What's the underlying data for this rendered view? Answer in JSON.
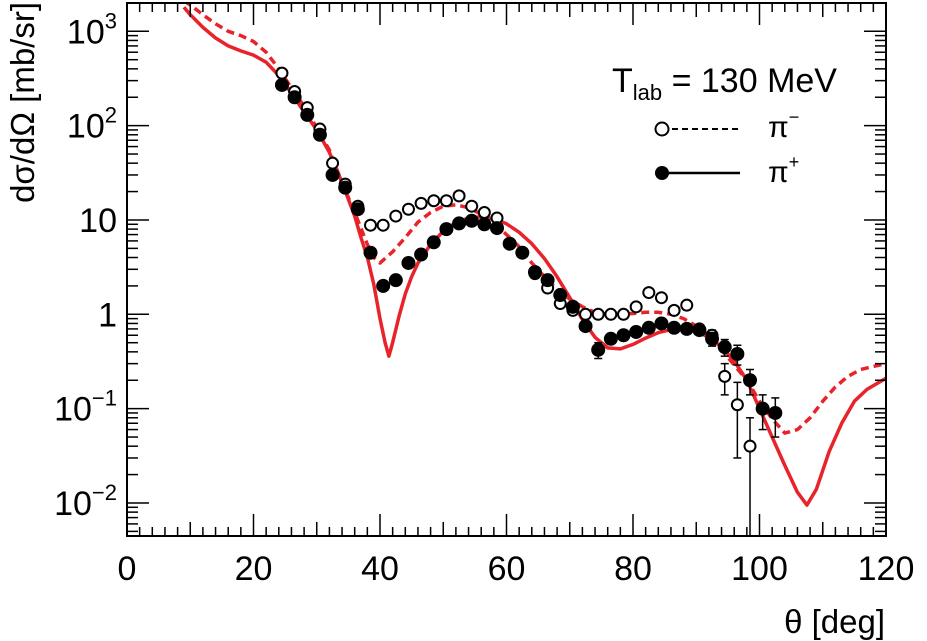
{
  "chart_data": {
    "type": "scatter",
    "title": "",
    "xlabel": "θ [deg]",
    "ylabel": "dσ/dΩ [mb/sr]",
    "xlim": [
      0,
      120
    ],
    "ylim_log10": [
      -2.35,
      3.3
    ],
    "y_scale": "log",
    "grid": false,
    "x_ticks": [
      0,
      20,
      40,
      60,
      80,
      100,
      120
    ],
    "x_tick_labels": [
      "0",
      "20",
      "40",
      "60",
      "80",
      "100",
      "120"
    ],
    "y_ticks": [
      {
        "value": 0.01,
        "base": "10",
        "exp": "−2",
        "plain": ""
      },
      {
        "value": 0.1,
        "base": "10",
        "exp": "−1",
        "plain": ""
      },
      {
        "value": 1,
        "base": "",
        "exp": "",
        "plain": "1"
      },
      {
        "value": 10,
        "base": "",
        "exp": "",
        "plain": "10"
      },
      {
        "value": 100,
        "base": "10",
        "exp": "2",
        "plain": ""
      },
      {
        "value": 1000,
        "base": "10",
        "exp": "3",
        "plain": ""
      }
    ],
    "legend": {
      "placement": "top-right",
      "header_main": "T",
      "header_sub": "lab",
      "header_rest": " = 130 MeV",
      "entries": [
        {
          "label_base": "π",
          "label_sup": "−",
          "marker": "open-circle",
          "line": "dashed"
        },
        {
          "label_base": "π",
          "label_sup": "+",
          "marker": "filled-circle",
          "line": "solid"
        }
      ]
    },
    "colors": {
      "data": "#000000",
      "theory": "#e8232a"
    },
    "series": [
      {
        "name": "π− data",
        "marker": "open-circle",
        "x": [
          24.5,
          26.5,
          28.5,
          30.5,
          32.5,
          34.5,
          36.5,
          38.5,
          40.5,
          42.5,
          44.5,
          46.5,
          48.5,
          50.5,
          52.5,
          54.5,
          56.5,
          58.5,
          64.5,
          66.5,
          68.5,
          70.5,
          72.5,
          74.5,
          76.5,
          78.5,
          80.5,
          82.5,
          84.5,
          86.5,
          88.5,
          90.5,
          92.5,
          94.5,
          96.5,
          98.5
        ],
        "y": [
          360,
          230,
          155,
          92,
          40,
          24,
          14,
          8.8,
          8.8,
          11,
          13,
          15,
          16,
          16,
          18,
          14,
          12,
          10.5,
          2.7,
          1.9,
          1.3,
          1.1,
          1.0,
          1.0,
          1.0,
          1.0,
          1.2,
          1.7,
          1.5,
          1.1,
          1.25,
          0.7,
          0.6,
          0.22,
          0.11,
          0.04
        ],
        "err": [
          0,
          0,
          0,
          0,
          0,
          0,
          0,
          0,
          0,
          0,
          0,
          0,
          0,
          0,
          0,
          0,
          0,
          0,
          0,
          0,
          0,
          0,
          0,
          0,
          0,
          0,
          0,
          0,
          0,
          0,
          0,
          0.08,
          0.08,
          0.08,
          0.08,
          0.04
        ]
      },
      {
        "name": "π+ data",
        "marker": "filled-circle",
        "x": [
          24.5,
          26.5,
          28.5,
          30.5,
          32.5,
          34.5,
          36.5,
          38.5,
          40.5,
          42.5,
          44.5,
          46.5,
          48.5,
          50.5,
          52.5,
          54.5,
          56.5,
          58.5,
          60.5,
          62.5,
          64.5,
          66.5,
          68.5,
          70.5,
          72.5,
          74.5,
          76.5,
          78.5,
          80.5,
          82.5,
          84.5,
          86.5,
          88.5,
          90.5,
          92.5,
          94.5,
          96.5,
          98.5,
          100.5,
          102.5
        ],
        "y": [
          270,
          200,
          130,
          80,
          30,
          22,
          13,
          4.5,
          2.0,
          2.3,
          3.5,
          4.3,
          5.8,
          8.0,
          9.2,
          9.8,
          9.0,
          8.2,
          5.6,
          4.5,
          2.8,
          2.3,
          1.6,
          1.2,
          0.75,
          0.42,
          0.55,
          0.6,
          0.65,
          0.72,
          0.8,
          0.72,
          0.7,
          0.68,
          0.55,
          0.45,
          0.38,
          0.2,
          0.1,
          0.09
        ],
        "err": [
          0,
          0,
          0,
          0,
          0,
          0,
          0,
          0,
          0,
          0,
          0,
          0,
          0,
          0,
          0,
          0,
          0,
          0,
          0,
          0,
          0,
          0,
          0,
          0,
          0,
          0.08,
          0,
          0,
          0,
          0,
          0,
          0,
          0,
          0.06,
          0.09,
          0.09,
          0.09,
          0.06,
          0.04,
          0.04
        ]
      },
      {
        "name": "π− theory",
        "line": "dashed",
        "x": [
          9,
          10,
          12,
          14,
          16,
          18,
          20,
          22,
          24,
          26,
          28,
          30,
          32,
          34,
          36,
          38,
          39,
          40,
          42,
          44,
          46,
          48,
          50,
          52,
          54,
          56,
          58,
          60,
          62,
          64,
          66,
          68,
          70,
          72,
          74,
          76,
          78,
          80,
          82,
          84,
          86,
          88,
          90,
          92,
          94,
          96,
          98,
          100,
          102,
          104,
          106,
          108,
          110,
          112,
          114,
          116,
          118,
          120
        ],
        "y": [
          2100,
          1900,
          1500,
          1200,
          1000,
          900,
          780,
          600,
          400,
          250,
          160,
          95,
          55,
          25,
          12,
          5.5,
          4.0,
          3.5,
          4.6,
          6.5,
          9.5,
          12,
          14,
          14.5,
          13.5,
          11.5,
          9.3,
          7.0,
          5.2,
          3.5,
          2.5,
          1.85,
          1.45,
          1.2,
          1.05,
          1.0,
          1.0,
          1.02,
          1.05,
          1.05,
          1.0,
          0.9,
          0.75,
          0.58,
          0.42,
          0.29,
          0.2,
          0.12,
          0.078,
          0.055,
          0.06,
          0.08,
          0.12,
          0.17,
          0.22,
          0.26,
          0.28,
          0.3
        ]
      },
      {
        "name": "π+ theory",
        "line": "solid",
        "x": [
          9,
          10,
          12,
          14,
          16,
          18,
          20,
          22,
          24,
          26,
          28,
          30,
          32,
          34,
          36,
          37,
          38,
          39,
          40,
          40.8,
          41.4,
          42,
          43,
          44,
          45,
          46,
          48,
          50,
          52,
          54,
          56,
          58,
          60,
          62,
          64,
          66,
          68,
          70,
          72,
          74,
          76,
          78,
          80,
          82,
          84,
          86,
          88,
          90,
          92,
          94,
          96,
          98,
          100,
          102,
          104,
          106,
          107.5,
          109,
          111,
          113,
          115,
          117,
          120
        ],
        "y": [
          1800,
          1500,
          1100,
          850,
          700,
          620,
          560,
          470,
          340,
          220,
          140,
          90,
          52,
          25,
          11,
          6.5,
          4.0,
          2.1,
          0.9,
          0.5,
          0.36,
          0.5,
          0.95,
          1.65,
          2.5,
          3.5,
          5.5,
          7.6,
          9.4,
          10.5,
          10.8,
          10.3,
          9.1,
          7.4,
          5.6,
          3.9,
          2.5,
          1.5,
          0.88,
          0.57,
          0.44,
          0.43,
          0.48,
          0.56,
          0.64,
          0.69,
          0.7,
          0.66,
          0.57,
          0.45,
          0.32,
          0.2,
          0.1,
          0.05,
          0.025,
          0.013,
          0.0095,
          0.014,
          0.035,
          0.07,
          0.12,
          0.16,
          0.21
        ]
      }
    ]
  }
}
